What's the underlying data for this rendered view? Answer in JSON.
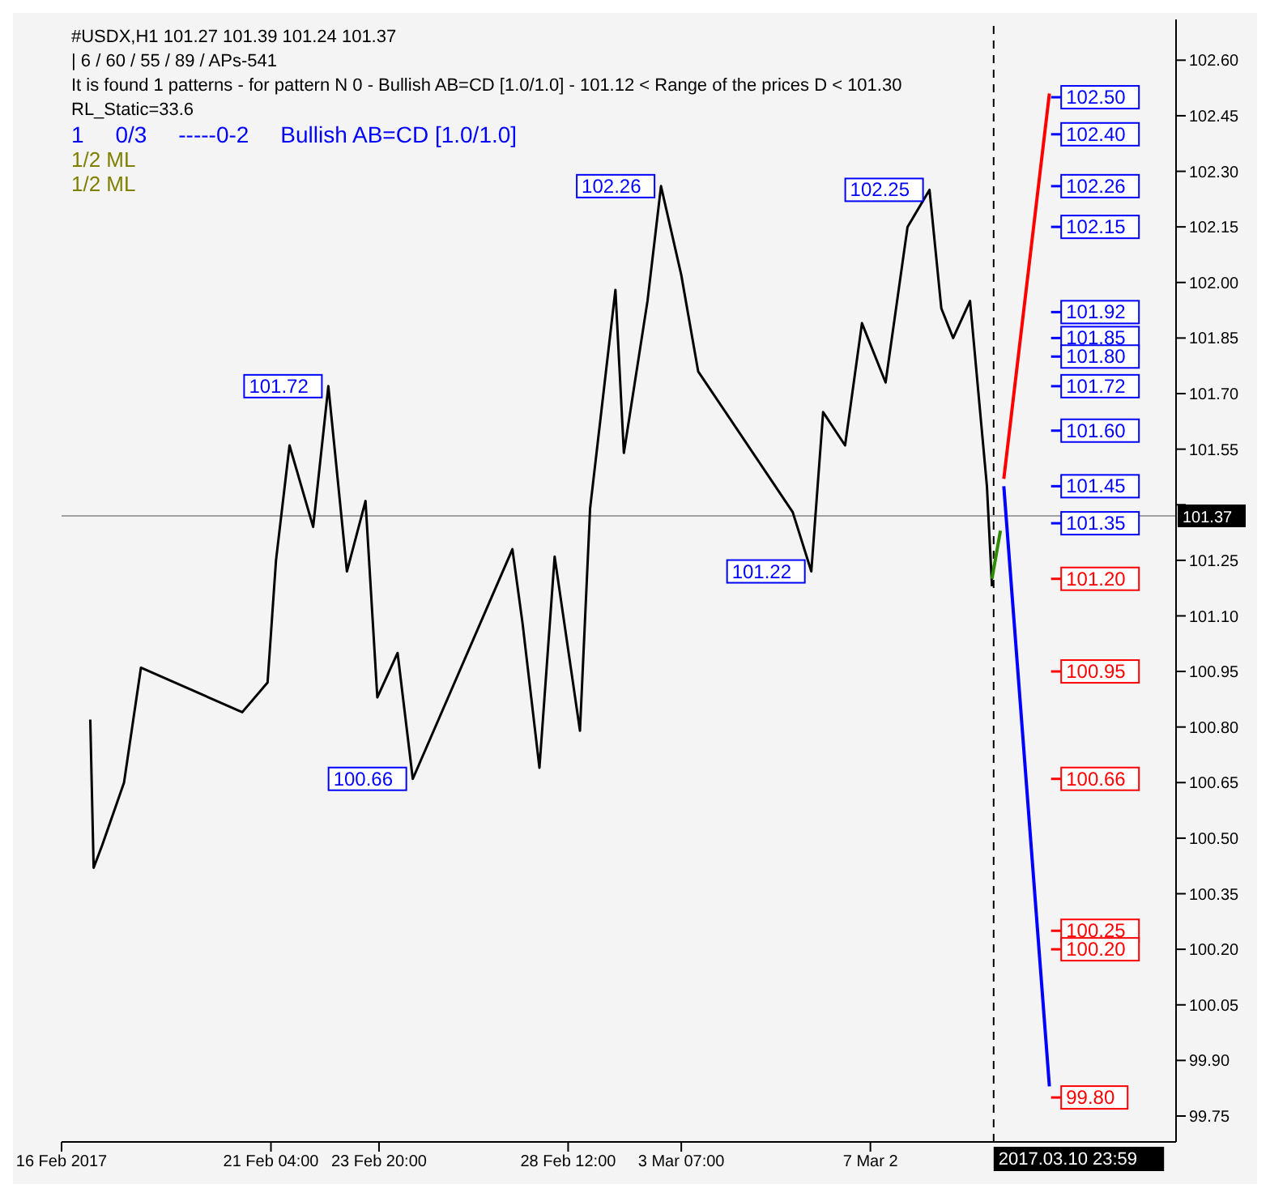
{
  "chart_data": {
    "type": "line",
    "title": "#USDX,H1  101.27 101.39 101.24 101.37",
    "subtitle": "| 6 / 60 / 55 / 89 / APs-541",
    "annotations": [
      "It is found 1 patterns  -  for pattern N 0 - Bullish AB=CD [1.0/1.0] - 101.12 < Range of the prices D < 101.30",
      "RL_Static=33.6",
      "1     0/3     -----0-2     Bullish AB=CD [1.0/1.0]",
      "1/2 ML",
      "1/2 ML",
      {
        "text": "101.72",
        "x": "2017-02-22T14:00",
        "y": 101.72
      },
      {
        "text": "102.26",
        "x": "2017-03-02T19:00",
        "y": 102.26
      },
      {
        "text": "102.25",
        "x": "2017-03-09T10:00",
        "y": 102.25
      },
      {
        "text": "101.22",
        "x": "2017-03-06T12:00",
        "y": 101.22
      },
      {
        "text": "100.66",
        "x": "2017-02-24T16:00",
        "y": 100.66
      }
    ],
    "series": [
      {
        "color": "#000000",
        "x": [
          "2017-02-16T17:00",
          "2017-02-16T19:00",
          "2017-02-17T00:00",
          "2017-02-17T13:00",
          "2017-02-17T23:00",
          "2017-02-20T11:00",
          "2017-02-21T02:00",
          "2017-02-21T07:00",
          "2017-02-21T15:00",
          "2017-02-22T05:00",
          "2017-02-22T14:00",
          "2017-02-23T01:00",
          "2017-02-23T12:00",
          "2017-02-23T19:00",
          "2017-02-24T07:00",
          "2017-02-24T16:00",
          "2017-02-27T03:00",
          "2017-02-27T09:00",
          "2017-02-27T19:00",
          "2017-02-28T04:00",
          "2017-02-28T19:00",
          "2017-03-01T01:00",
          "2017-03-01T16:00",
          "2017-03-01T21:00",
          "2017-03-02T11:00",
          "2017-03-02T19:00",
          "2017-03-03T07:00",
          "2017-03-03T17:00",
          "2017-03-06T01:00",
          "2017-03-06T12:00",
          "2017-03-06T19:00",
          "2017-03-07T08:00",
          "2017-03-07T18:00",
          "2017-03-08T08:00",
          "2017-03-08T21:00",
          "2017-03-09T10:00",
          "2017-03-09T17:00",
          "2017-03-10T00:00",
          "2017-03-10T10:00",
          "2017-03-10T20:00",
          "2017-03-10T23:00"
        ],
        "values": [
          100.82,
          100.42,
          100.48,
          100.65,
          100.96,
          100.84,
          100.92,
          101.25,
          101.56,
          101.34,
          101.72,
          101.22,
          101.41,
          100.88,
          101.0,
          100.66,
          101.28,
          101.08,
          100.69,
          101.26,
          100.79,
          101.39,
          101.98,
          101.54,
          101.95,
          102.26,
          102.02,
          101.76,
          101.38,
          101.22,
          101.65,
          101.56,
          101.89,
          101.73,
          102.15,
          102.25,
          101.93,
          101.85,
          101.95,
          101.45,
          101.18
        ]
      },
      {
        "color": "#ff0000",
        "x": [
          "2017-03-11T06:00",
          "2017-03-12T09:00"
        ],
        "values": [
          101.47,
          102.51
        ]
      },
      {
        "color": "#0000ff",
        "x": [
          "2017-03-11T06:00",
          "2017-03-12T09:00"
        ],
        "values": [
          101.45,
          99.83
        ]
      },
      {
        "color": "#2e8b00",
        "x": [
          "2017-03-10T23:00",
          "2017-03-11T04:00"
        ],
        "values": [
          101.2,
          101.33
        ]
      }
    ],
    "xlim": [
      "2017-02-16T00:00",
      "2017-03-15T12:00"
    ],
    "ylim": [
      99.68,
      102.71
    ],
    "xticks": [
      {
        "value": "2017-02-16T00:00",
        "label": "16 Feb 2017"
      },
      {
        "value": "2017-02-21T04:00",
        "label": "21 Feb 04:00"
      },
      {
        "value": "2017-02-23T20:00",
        "label": "23 Feb 20:00"
      },
      {
        "value": "2017-02-28T12:00",
        "label": "28 Feb 12:00"
      },
      {
        "value": "2017-03-03T07:00",
        "label": "3 Mar 07:00"
      },
      {
        "value": "2017-03-07T23:00",
        "label": "7 Mar 2"
      }
    ],
    "yticks": [
      99.75,
      {
        "value": 99.9,
        "label": "99.90"
      },
      100.05,
      {
        "value": 100.2,
        "label": "100.20"
      },
      100.35,
      {
        "value": 100.5,
        "label": "100.50"
      },
      100.65,
      {
        "value": 100.8,
        "label": "100.80"
      },
      100.95,
      {
        "value": 101.1,
        "label": "101.10"
      },
      101.25,
      {
        "value": 101.4,
        "label": null
      },
      101.55,
      {
        "value": 101.7,
        "label": "101.70"
      },
      101.85,
      {
        "value": 102.0,
        "label": "102.00"
      },
      102.15,
      {
        "value": 102.3,
        "label": "102.30"
      },
      102.45,
      {
        "value": 102.6,
        "label": "102.60"
      }
    ],
    "ref_lines": [
      {
        "axis": "x",
        "value": "2017-03-10T23:59",
        "label": "2017.03.10 23:59",
        "color": "#000000",
        "line_style": "dashed"
      },
      {
        "axis": "y",
        "value": 101.37,
        "label": "101.37",
        "color": "#a0a0a0",
        "line_style": "solid"
      },
      {
        "axis": "y",
        "value": 102.5,
        "label": "102.50",
        "color": "#0000ff"
      },
      {
        "axis": "y",
        "value": 102.4,
        "label": "102.40",
        "color": "#0000ff"
      },
      {
        "axis": "y",
        "value": 102.26,
        "label": "102.26",
        "color": "#0000ff"
      },
      {
        "axis": "y",
        "value": 102.15,
        "label": "102.15",
        "color": "#0000ff"
      },
      {
        "axis": "y",
        "value": 101.92,
        "label": "101.92",
        "color": "#0000ff"
      },
      {
        "axis": "y",
        "value": 101.85,
        "label": "101.85",
        "color": "#0000ff"
      },
      {
        "axis": "y",
        "value": 101.8,
        "label": "101.80",
        "color": "#0000ff"
      },
      {
        "axis": "y",
        "value": 101.72,
        "label": "101.72",
        "color": "#0000ff"
      },
      {
        "axis": "y",
        "value": 101.6,
        "label": "101.60",
        "color": "#0000ff"
      },
      {
        "axis": "y",
        "value": 101.45,
        "label": "101.45",
        "color": "#0000ff"
      },
      {
        "axis": "y",
        "value": 101.35,
        "label": "101.35",
        "color": "#0000ff"
      },
      {
        "axis": "y",
        "value": 101.2,
        "label": "101.20",
        "color": "#ff0000"
      },
      {
        "axis": "y",
        "value": 100.95,
        "label": "100.95",
        "color": "#ff0000"
      },
      {
        "axis": "y",
        "value": 100.66,
        "label": "100.66",
        "color": "#ff0000"
      },
      {
        "axis": "y",
        "value": 100.25,
        "label": "100.25",
        "color": "#ff0000"
      },
      {
        "axis": "y",
        "value": 100.2,
        "label": "100.20",
        "color": "#ff0000"
      },
      {
        "axis": "y",
        "value": 99.8,
        "label": "99.80",
        "color": "#ff0000"
      }
    ],
    "grid": false,
    "marker": "none",
    "line_style": "solid"
  }
}
